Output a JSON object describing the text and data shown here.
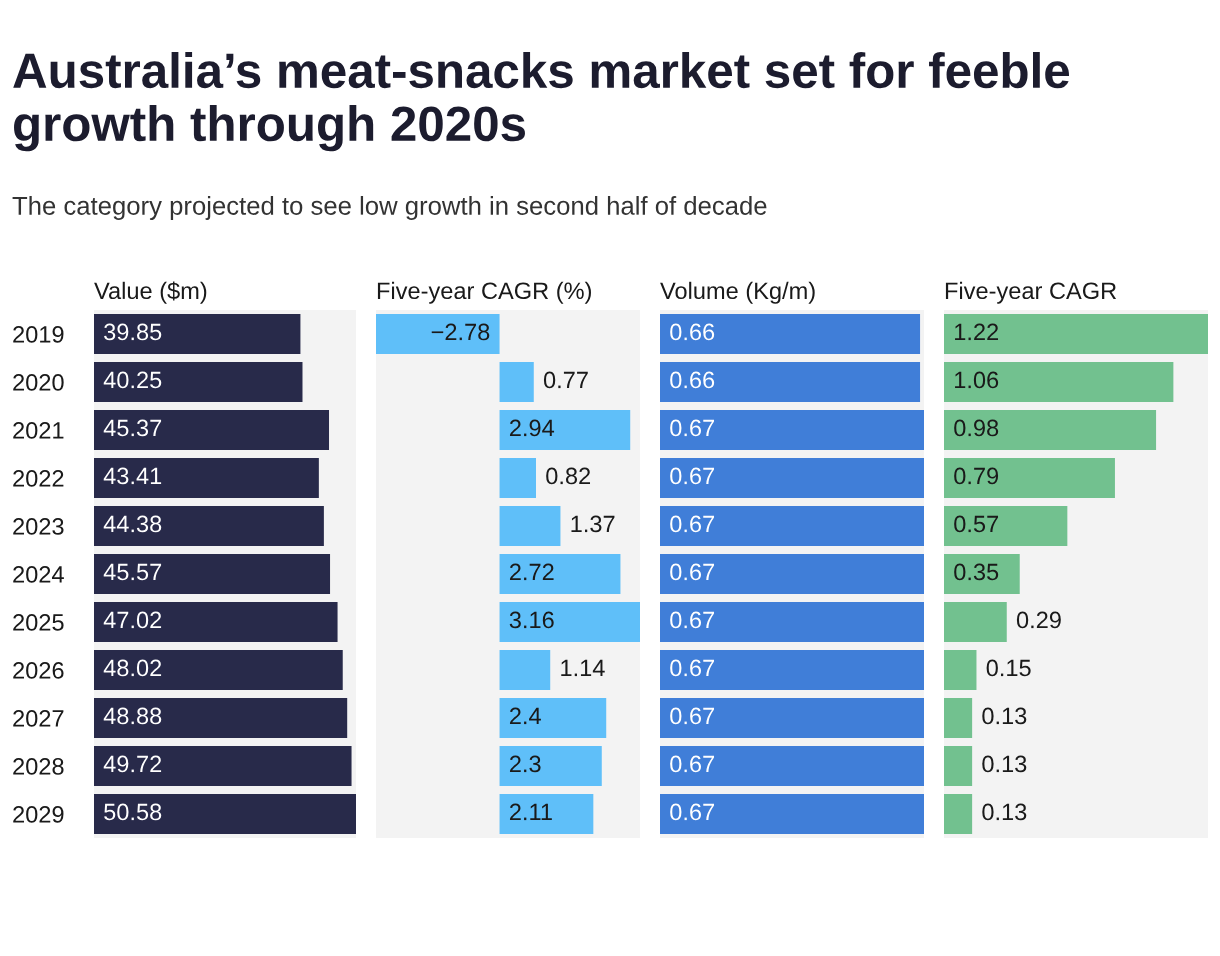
{
  "chart_data": [
    {
      "type": "bar",
      "orientation": "horizontal",
      "title": "Australia’s meat-snacks market set for feeble growth through 2020s",
      "subtitle": "The category projected to see low growth in second half of decade",
      "xlabel": "Value ($m)",
      "categories": [
        "2019",
        "2020",
        "2021",
        "2022",
        "2023",
        "2024",
        "2025",
        "2026",
        "2027",
        "2028",
        "2029"
      ],
      "values": [
        39.85,
        40.25,
        45.37,
        43.41,
        44.38,
        45.57,
        47.02,
        48.02,
        48.88,
        49.72,
        50.58
      ],
      "color": "#282a4a",
      "xlim": [
        0,
        50.58
      ],
      "data_labels": true,
      "tick_labels": "y"
    },
    {
      "type": "bar",
      "orientation": "horizontal",
      "xlabel": "Five-year CAGR (%)",
      "categories": [
        "2019",
        "2020",
        "2021",
        "2022",
        "2023",
        "2024",
        "2025",
        "2026",
        "2027",
        "2028",
        "2029"
      ],
      "values": [
        -2.78,
        0.77,
        2.94,
        0.82,
        1.37,
        2.72,
        3.16,
        1.14,
        2.4,
        2.3,
        2.11
      ],
      "color": "#5fbff9",
      "xlim": [
        -2.78,
        3.16
      ],
      "data_labels": true,
      "tick_labels": false
    },
    {
      "type": "bar",
      "orientation": "horizontal",
      "xlabel": "Volume (Kg/m)",
      "categories": [
        "2019",
        "2020",
        "2021",
        "2022",
        "2023",
        "2024",
        "2025",
        "2026",
        "2027",
        "2028",
        "2029"
      ],
      "values": [
        0.66,
        0.66,
        0.67,
        0.67,
        0.67,
        0.67,
        0.67,
        0.67,
        0.67,
        0.67,
        0.67
      ],
      "color": "#407ed8",
      "xlim": [
        0,
        0.67
      ],
      "data_labels": true,
      "tick_labels": false
    },
    {
      "type": "bar",
      "orientation": "horizontal",
      "xlabel": "Five-year CAGR",
      "categories": [
        "2019",
        "2020",
        "2021",
        "2022",
        "2023",
        "2024",
        "2025",
        "2026",
        "2027",
        "2028",
        "2029"
      ],
      "values": [
        1.22,
        1.06,
        0.98,
        0.79,
        0.57,
        0.35,
        0.29,
        0.15,
        0.13,
        0.13,
        0.13
      ],
      "color": "#72c18f",
      "xlim": [
        0,
        1.22
      ],
      "data_labels": true,
      "tick_labels": false
    }
  ]
}
